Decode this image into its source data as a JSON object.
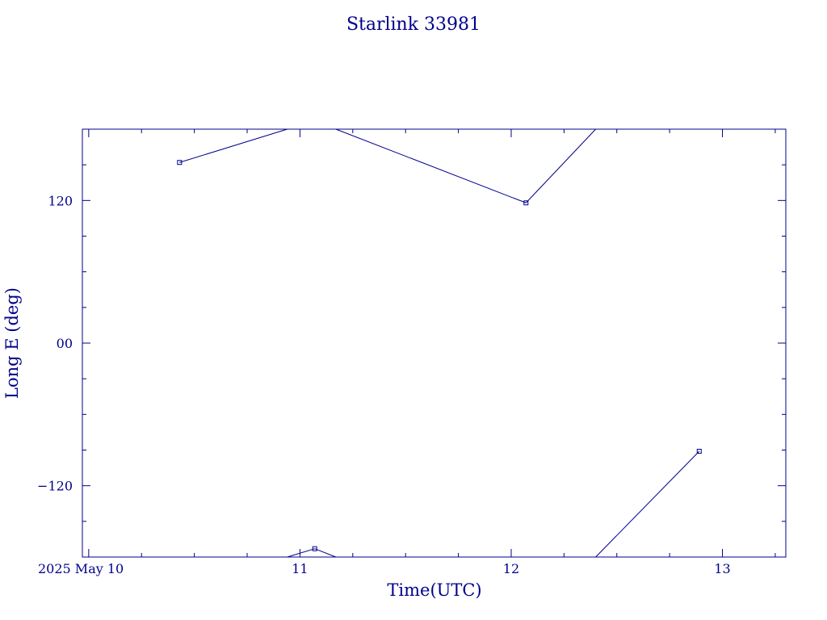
{
  "chart_data": {
    "type": "line",
    "title": "Starlink 33981",
    "xlabel": "Time(UTC)",
    "ylabel": "Long E (deg)",
    "xlim": [
      9.97,
      13.3
    ],
    "ylim": [
      -180,
      180
    ],
    "x_ticks": [
      {
        "value": 10,
        "label": "2025 May 10"
      },
      {
        "value": 11,
        "label": "11"
      },
      {
        "value": 12,
        "label": "12"
      },
      {
        "value": 13,
        "label": "13"
      }
    ],
    "y_ticks": [
      {
        "value": 120,
        "label": "120"
      },
      {
        "value": 0,
        "label": "00"
      },
      {
        "value": -120,
        "label": "−120"
      }
    ],
    "color": "#00008b",
    "grid": false,
    "series": [
      {
        "points": [
          {
            "x": 10.43,
            "y": 152,
            "marker": true
          },
          {
            "x": 10.94,
            "y": 180,
            "marker": false
          },
          {
            "x": 10.94,
            "y": -180,
            "marker": false
          },
          {
            "x": 11.07,
            "y": -173,
            "marker": true
          },
          {
            "x": 11.17,
            "y": -180,
            "marker": false
          },
          {
            "x": 11.17,
            "y": 180,
            "marker": false
          },
          {
            "x": 12.07,
            "y": 118,
            "marker": true
          },
          {
            "x": 12.4,
            "y": 180,
            "marker": false
          },
          {
            "x": 12.4,
            "y": -180,
            "marker": false
          },
          {
            "x": 12.89,
            "y": -91,
            "marker": true
          }
        ]
      }
    ]
  }
}
